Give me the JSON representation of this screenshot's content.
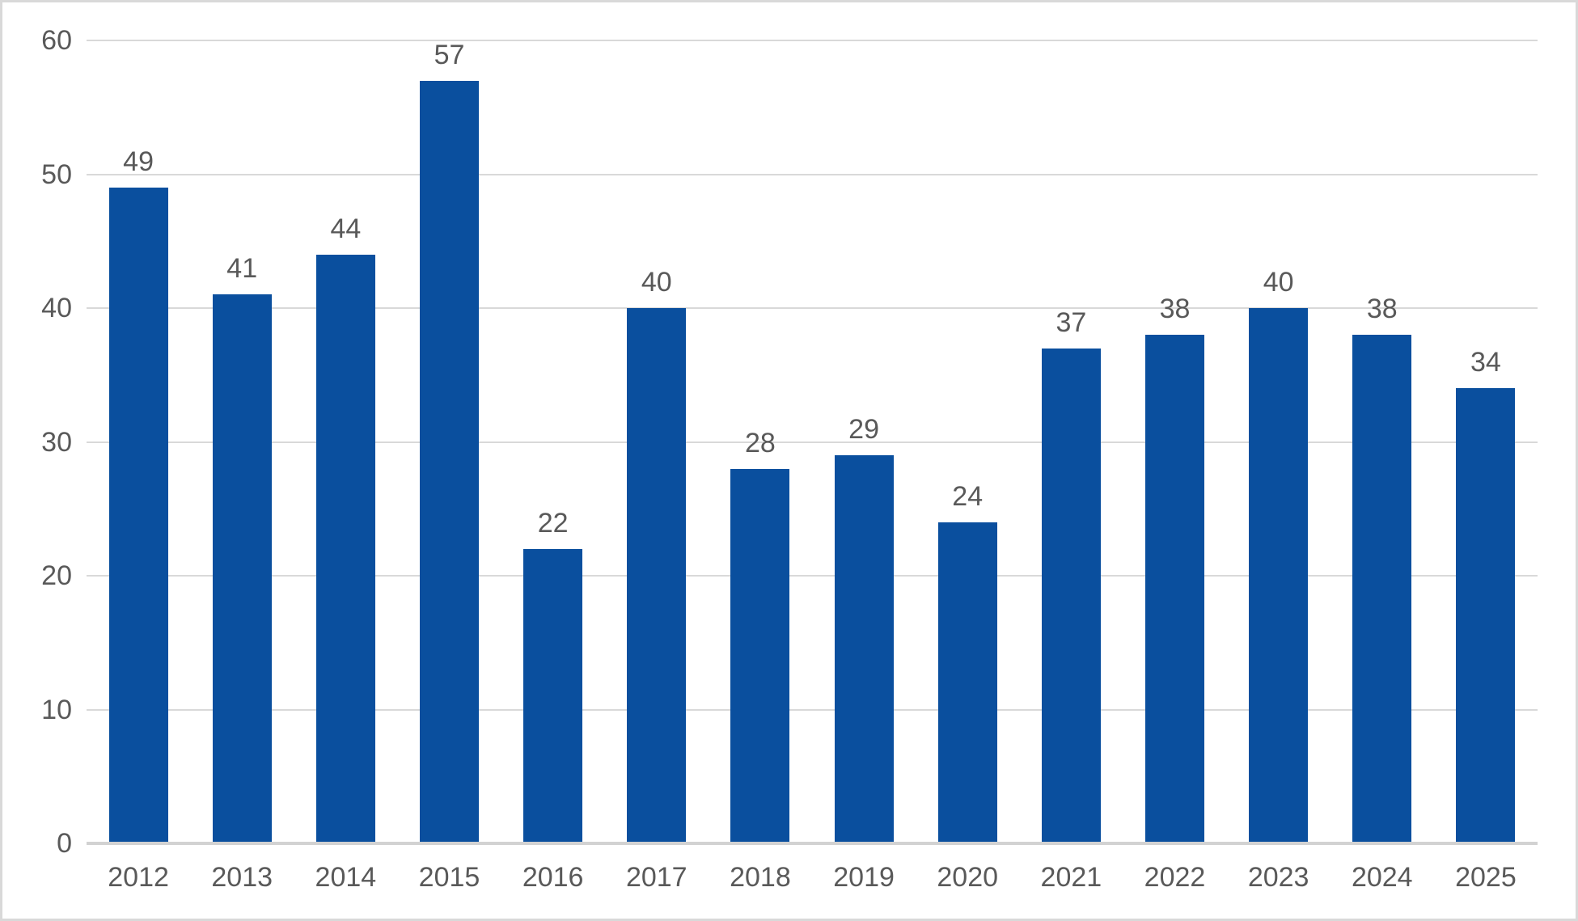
{
  "chart_data": {
    "type": "bar",
    "categories": [
      "2012",
      "2013",
      "2014",
      "2015",
      "2016",
      "2017",
      "2018",
      "2019",
      "2020",
      "2021",
      "2022",
      "2023",
      "2024",
      "2025"
    ],
    "values": [
      49,
      41,
      44,
      57,
      22,
      40,
      28,
      29,
      24,
      37,
      38,
      40,
      38,
      34
    ],
    "title": "",
    "xlabel": "",
    "ylabel": "",
    "ylim": [
      0,
      60
    ],
    "yticks": [
      0,
      10,
      20,
      30,
      40,
      50,
      60
    ],
    "grid": true,
    "legend": "none",
    "data_labels": true,
    "colors": {
      "bar": "#0A4F9E",
      "label_text": "#595959",
      "gridline": "#D9D9D9",
      "axis_line": "#D2D2D2",
      "chart_border": "#D9D9D9",
      "background": "#FFFFFF"
    }
  }
}
